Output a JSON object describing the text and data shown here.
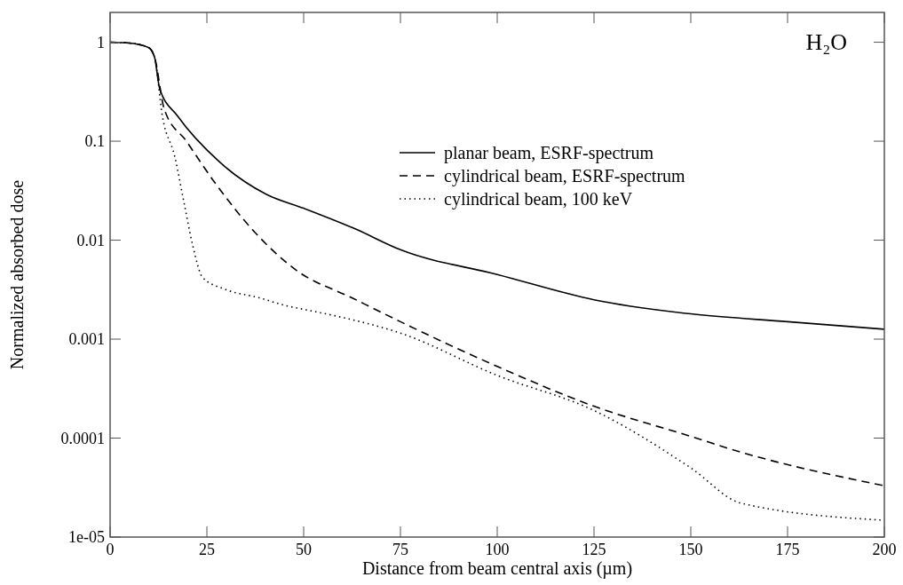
{
  "chart_data": {
    "type": "line",
    "xlabel": "Distance from beam central axis (µm)",
    "ylabel": "Normalized absorbed dose",
    "annotations": [
      "H₂O"
    ],
    "log": "y",
    "xlim": [
      0,
      200
    ],
    "ylim": [
      1e-05,
      2
    ],
    "xticks": [
      0,
      25,
      50,
      75,
      100,
      125,
      150,
      175,
      200
    ],
    "yticks": [
      1,
      0.1,
      0.01,
      0.001,
      0.0001,
      {
        "value": 1e-05,
        "label": "1e-05"
      }
    ],
    "grid": false,
    "legend": "top right",
    "series": [
      {
        "name": "planar beam, ESRF-spectrum",
        "color": "#000000",
        "line_style": "solid",
        "x": [
          0,
          5,
          10,
          11.5,
          12.8,
          17.4,
          28.2,
          40.4,
          50,
          63.3,
          75,
          100,
          125,
          150,
          175,
          200
        ],
        "values": [
          1,
          0.98,
          0.88,
          0.7,
          0.34,
          0.18,
          0.062,
          0.029,
          0.021,
          0.013,
          0.008,
          0.0045,
          0.0025,
          0.0018,
          0.0015,
          0.00126
        ]
      },
      {
        "name": "cylindrical beam, ESRF-spectrum",
        "color": "#000000",
        "line_style": "dashed",
        "x": [
          0,
          5,
          10,
          11.5,
          14,
          19.7,
          27.3,
          37.4,
          48,
          62.6,
          75,
          100,
          125,
          150,
          163,
          200
        ],
        "values": [
          1,
          0.98,
          0.88,
          0.7,
          0.21,
          0.1,
          0.037,
          0.012,
          0.005,
          0.0026,
          0.0015,
          0.00053,
          0.00021,
          0.000104,
          7.2e-05,
          3.3e-05
        ]
      },
      {
        "name": "cylindrical beam, 100 keV",
        "color": "#000000",
        "line_style": "dotted",
        "x": [
          0,
          5,
          10,
          11.5,
          13.5,
          16.7,
          19,
          21.3,
          23.9,
          29.6,
          38.8,
          45,
          50,
          58.7,
          75,
          100,
          125,
          150,
          163,
          200
        ],
        "values": [
          1,
          0.98,
          0.88,
          0.7,
          0.18,
          0.07,
          0.025,
          0.009,
          0.0042,
          0.0032,
          0.0026,
          0.0022,
          0.002,
          0.0017,
          0.00115,
          0.00043,
          0.00019,
          5e-05,
          2.2e-05,
          1.48e-05
        ]
      }
    ]
  }
}
